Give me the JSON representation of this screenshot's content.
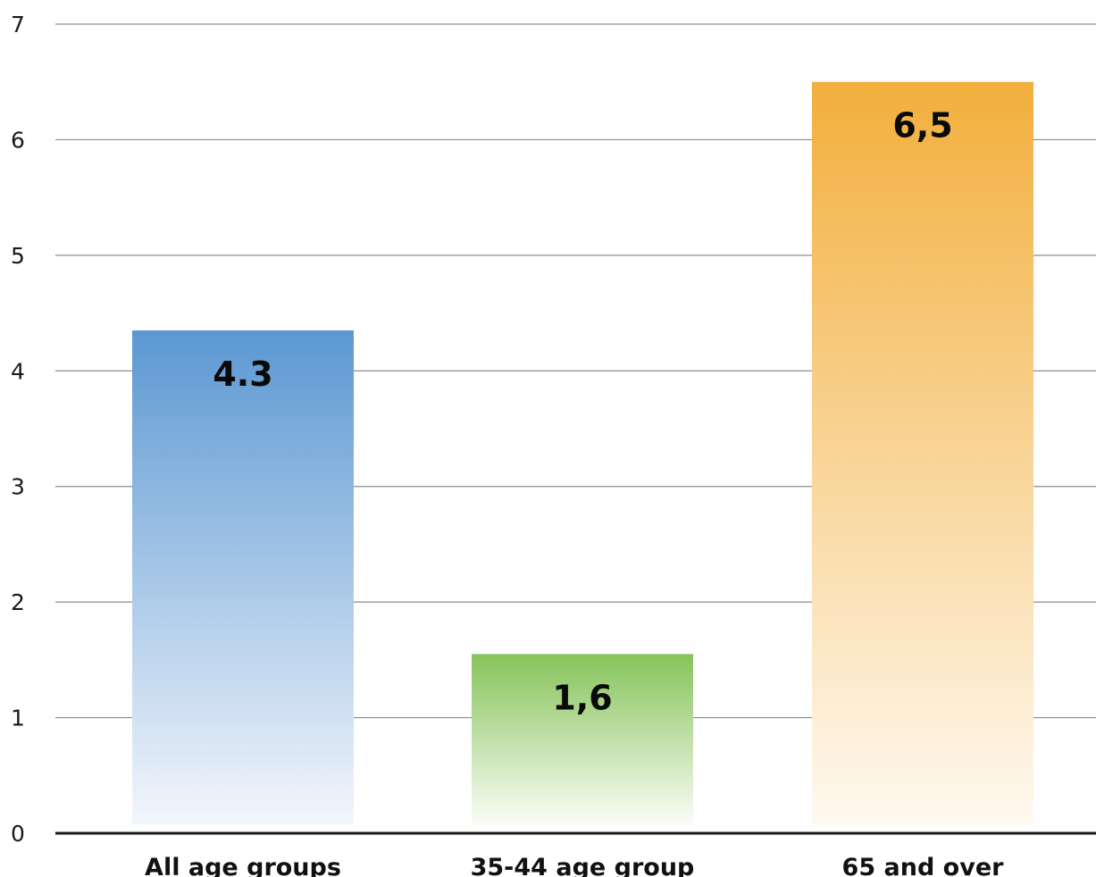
{
  "chart_data": {
    "type": "bar",
    "title": "",
    "xlabel": "",
    "ylabel": "",
    "categories": [
      "All age groups",
      "35-44 age group",
      "65 and over"
    ],
    "values": [
      4.35,
      1.55,
      6.5
    ],
    "data_labels": [
      "4.3",
      "1,6",
      "6,5"
    ],
    "ylim": [
      0,
      7
    ],
    "yticks": [
      "0",
      "1",
      "2",
      "3",
      "4",
      "5",
      "6",
      "7"
    ],
    "grid": true,
    "legend": "none",
    "bar_colors": [
      {
        "top": "#5b98d2",
        "bottom": "#f3f6fc"
      },
      {
        "top": "#86c35a",
        "bottom": "#fafdf7"
      },
      {
        "top": "#f2af3c",
        "bottom": "#fff9f0"
      }
    ],
    "gridline_color": "#8c8c8c",
    "axis_color": "#1a1a1a"
  }
}
